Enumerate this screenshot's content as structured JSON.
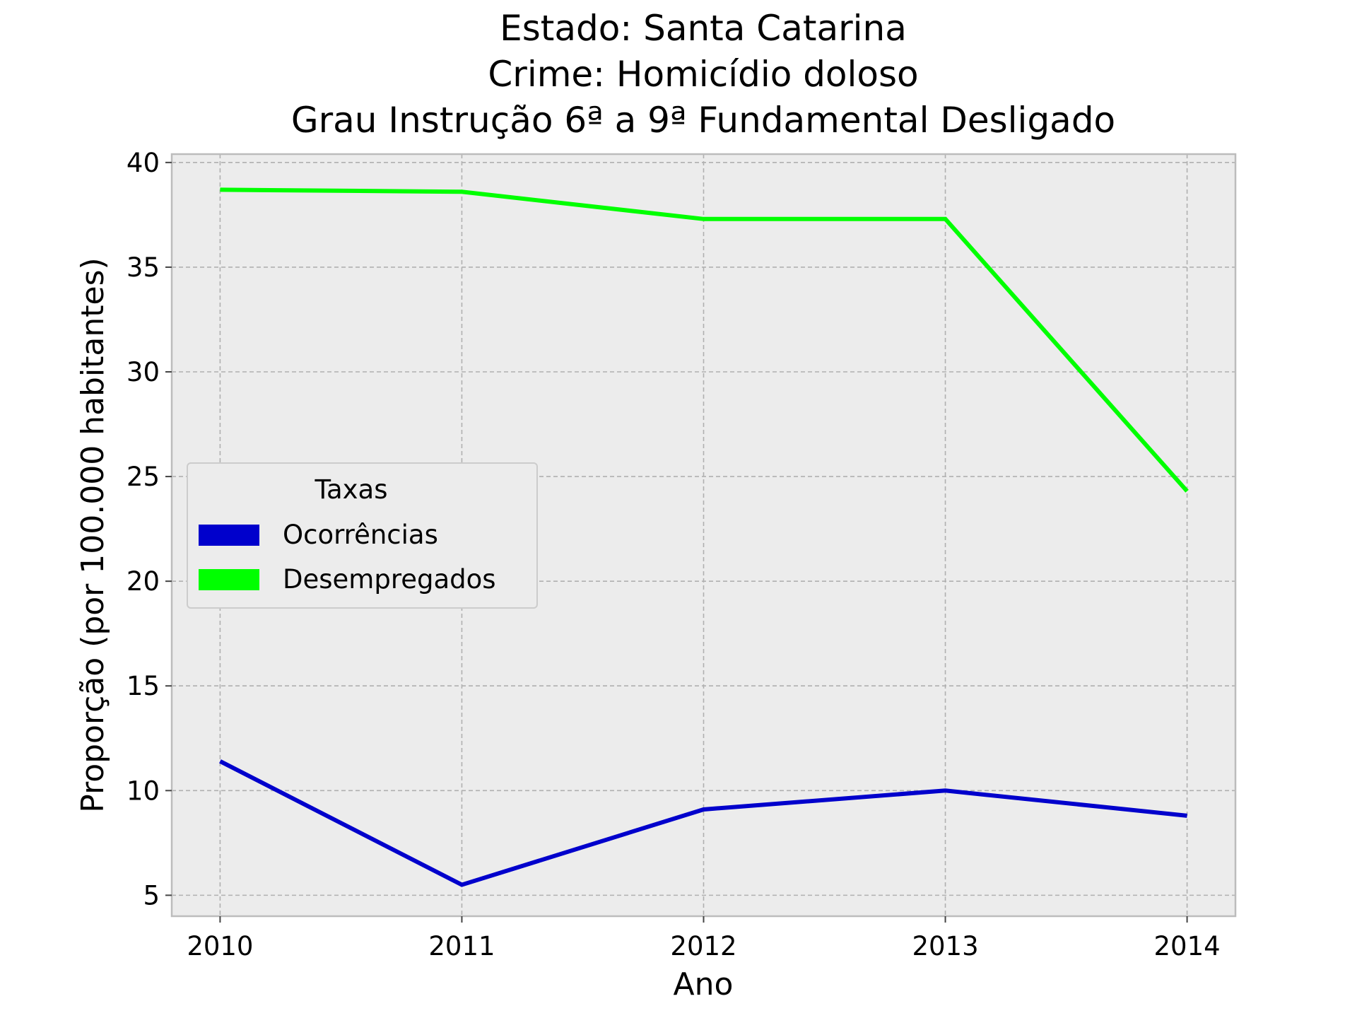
{
  "chart_data": {
    "type": "line",
    "title_lines": [
      "Estado: Santa Catarina",
      "Crime: Homicídio doloso",
      "Grau Instrução  6ª a 9ª Fundamental   Desligado"
    ],
    "xlabel": "Ano",
    "ylabel": "Proporção (por 100.000 habitantes)",
    "x": [
      2010,
      2011,
      2012,
      2013,
      2014
    ],
    "x_tick_labels": [
      "2010",
      "2011",
      "2012",
      "2013",
      "2014"
    ],
    "y_ticks": [
      5,
      10,
      15,
      20,
      25,
      30,
      35,
      40
    ],
    "y_tick_labels": [
      "5",
      "10",
      "15",
      "20",
      "25",
      "30",
      "35",
      "40"
    ],
    "xlim": [
      2009.8,
      2014.2
    ],
    "ylim": [
      4.0,
      40.4
    ],
    "grid": true,
    "legend_title": "Taxas",
    "legend_position": "center-left",
    "background_color": "#ececec",
    "series": [
      {
        "name": "Ocorrências",
        "color": "#0000cc",
        "values": [
          11.4,
          5.5,
          9.1,
          10.0,
          8.8
        ]
      },
      {
        "name": "Desempregados",
        "color": "#00ff00",
        "values": [
          38.7,
          38.6,
          37.3,
          37.3,
          24.3
        ]
      }
    ]
  }
}
